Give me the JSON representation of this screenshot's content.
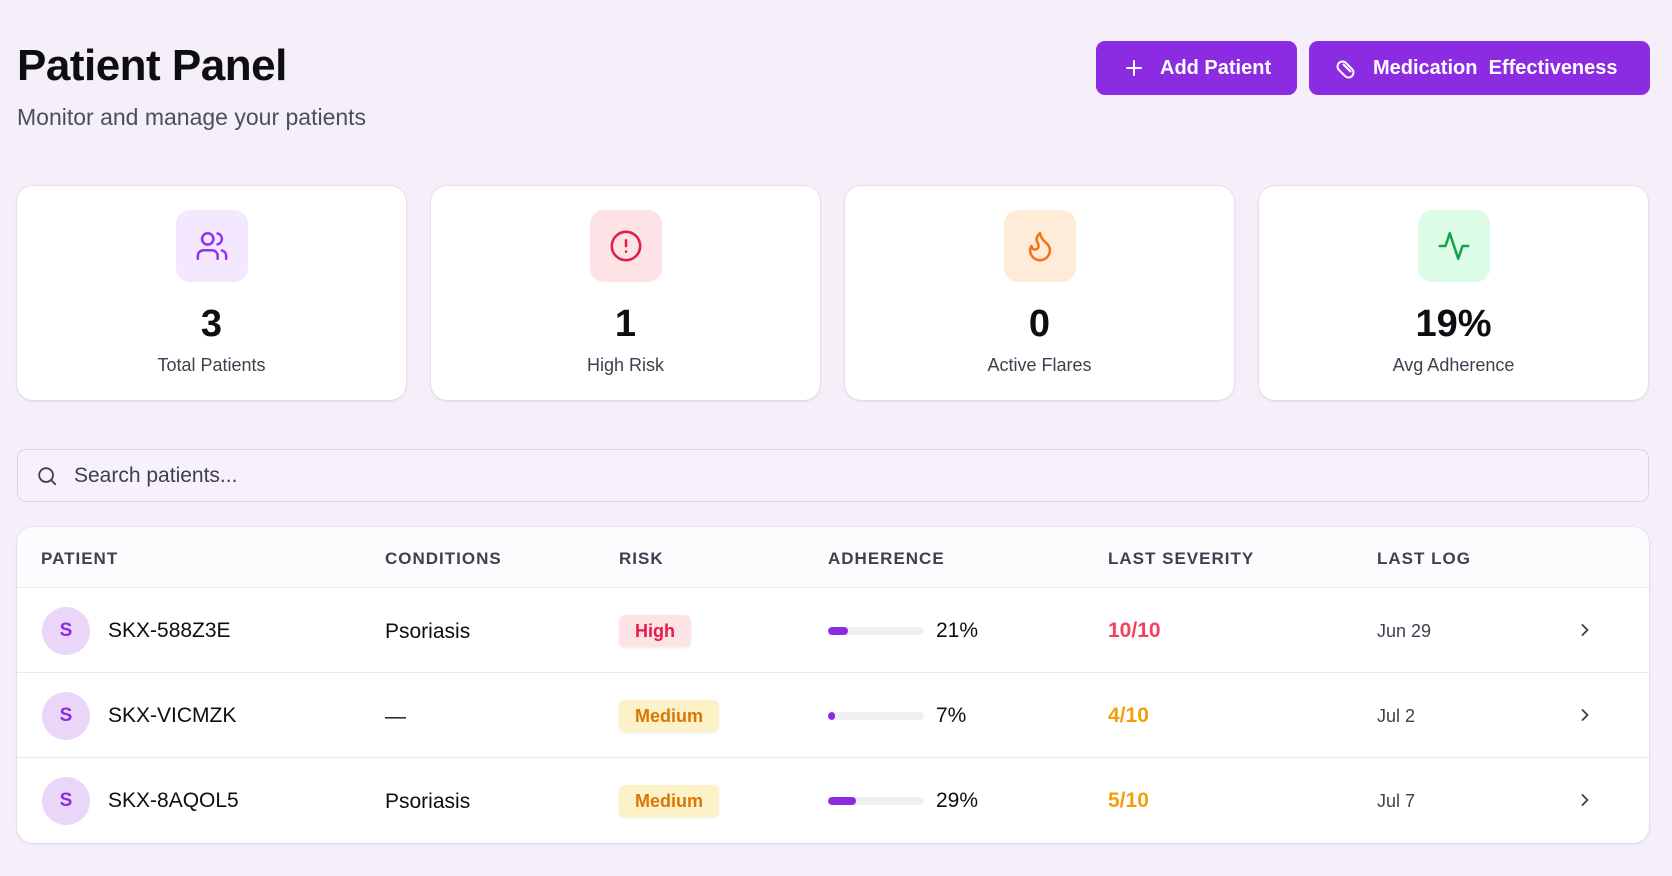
{
  "header": {
    "title": "Patient Panel",
    "subtitle": "Monitor and manage your patients"
  },
  "actions": {
    "add_label": "Add Patient",
    "add_icon": "plus-icon",
    "medication_label": "Medication  Effectiveness",
    "medication_icon": "pill-icon"
  },
  "stats": [
    {
      "value": "3",
      "label": "Total Patients",
      "icon": "users-icon",
      "bg": "#f3e8fd",
      "color": "#9333ea"
    },
    {
      "value": "1",
      "label": "High Risk",
      "icon": "alert-circle-icon",
      "bg": "#fde2e6",
      "color": "#e11d48"
    },
    {
      "value": "0",
      "label": "Active Flares",
      "icon": "flame-icon",
      "bg": "#feecd8",
      "color": "#f97316"
    },
    {
      "value": "19%",
      "label": "Avg Adherence",
      "icon": "activity-icon",
      "bg": "#dcfce7",
      "color": "#16a34a"
    }
  ],
  "search": {
    "placeholder": "Search patients...",
    "value": ""
  },
  "table": {
    "columns": [
      "PATIENT",
      "CONDITIONS",
      "RISK",
      "ADHERENCE",
      "LAST SEVERITY",
      "LAST LOG"
    ],
    "rows": [
      {
        "initial": "S",
        "id": "SKX-588Z3E",
        "condition": "Psoriasis",
        "risk": "High",
        "adherence": "21%",
        "adherence_fraction": 0.21,
        "severity": "10/10",
        "last_log": "Jun 29"
      },
      {
        "initial": "S",
        "id": "SKX-VICMZK",
        "condition": "—",
        "risk": "Medium",
        "adherence": "7%",
        "adherence_fraction": 0.07,
        "severity": "4/10",
        "last_log": "Jul 2"
      },
      {
        "initial": "S",
        "id": "SKX-8AQOL5",
        "condition": "Psoriasis",
        "risk": "Medium",
        "adherence": "29%",
        "adherence_fraction": 0.29,
        "severity": "5/10",
        "last_log": "Jul 7"
      }
    ]
  }
}
